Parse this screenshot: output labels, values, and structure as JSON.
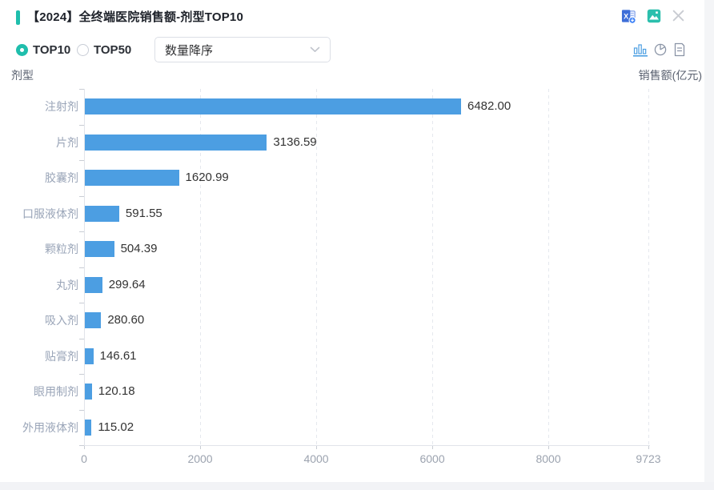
{
  "header": {
    "title": "【2024】全终端医院销售额-剂型TOP10"
  },
  "controls": {
    "top10_label": "TOP10",
    "top50_label": "TOP50",
    "selected_option": "TOP10",
    "sort_value": "数量降序",
    "active_view": "bar-chart"
  },
  "axis_captions": {
    "y": "剂型",
    "x": "销售额(亿元)"
  },
  "chart_data": {
    "type": "bar",
    "orientation": "horizontal",
    "title": "【2024】全终端医院销售额-剂型TOP10",
    "categories": [
      "注射剂",
      "片剂",
      "胶囊剂",
      "口服液体剂",
      "颗粒剂",
      "丸剂",
      "吸入剂",
      "贴膏剂",
      "眼用制剂",
      "外用液体剂"
    ],
    "values": [
      6482.0,
      3136.59,
      1620.99,
      591.55,
      504.39,
      299.64,
      280.6,
      146.61,
      120.18,
      115.02
    ],
    "value_labels": [
      "6482.00",
      "3136.59",
      "1620.99",
      "591.55",
      "504.39",
      "299.64",
      "280.60",
      "146.61",
      "120.18",
      "115.02"
    ],
    "xlabel": "销售额(亿元)",
    "ylabel": "剂型",
    "xlim": [
      0,
      9723
    ],
    "xticks": [
      0,
      2000,
      4000,
      6000,
      8000,
      9723
    ],
    "grid": "dashed-vertical",
    "legend": "none",
    "bar_color": "#4C9EE2"
  },
  "colors": {
    "accent_teal": "#1FBEAC",
    "bar_blue": "#4C9EE2",
    "page_background": "#F4F5F7",
    "view_icon_active": "#4D9FE2",
    "view_icon_inactive": "#8A94A6"
  }
}
